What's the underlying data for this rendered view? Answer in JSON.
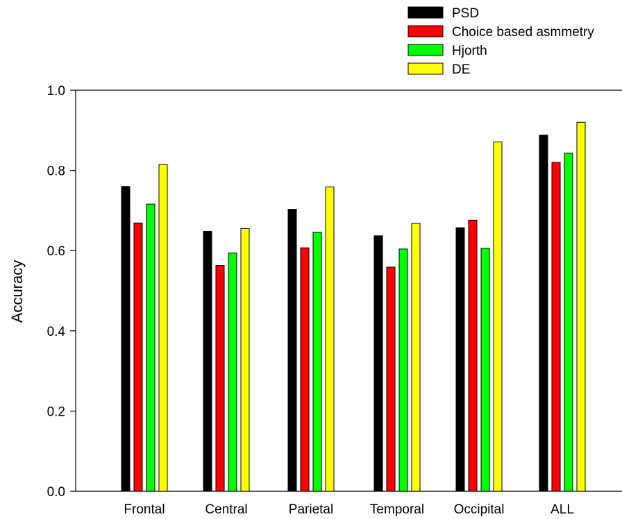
{
  "chart_data": {
    "type": "bar",
    "title": "",
    "xlabel": "",
    "ylabel": "Accuracy",
    "ylim": [
      0,
      1.0
    ],
    "yticks": [
      "0.0",
      "0.2",
      "0.4",
      "0.6",
      "0.8",
      "1.0"
    ],
    "categories": [
      "Frontal",
      "Central",
      "Parietal",
      "Temporal",
      "Occipital",
      "ALL"
    ],
    "series": [
      {
        "name": "PSD",
        "color": "#000000",
        "values": [
          0.76,
          0.648,
          0.703,
          0.637,
          0.657,
          0.888
        ]
      },
      {
        "name": "Choice based asmmetry",
        "color": "#ff0000",
        "values": [
          0.669,
          0.563,
          0.607,
          0.559,
          0.676,
          0.82
        ]
      },
      {
        "name": "Hjorth",
        "color": "#00ff00",
        "values": [
          0.716,
          0.594,
          0.646,
          0.604,
          0.606,
          0.843
        ]
      },
      {
        "name": "DE",
        "color": "#ffff00",
        "values": [
          0.815,
          0.655,
          0.759,
          0.668,
          0.871,
          0.92
        ]
      }
    ],
    "legend_position": "top-right",
    "grid": false
  }
}
